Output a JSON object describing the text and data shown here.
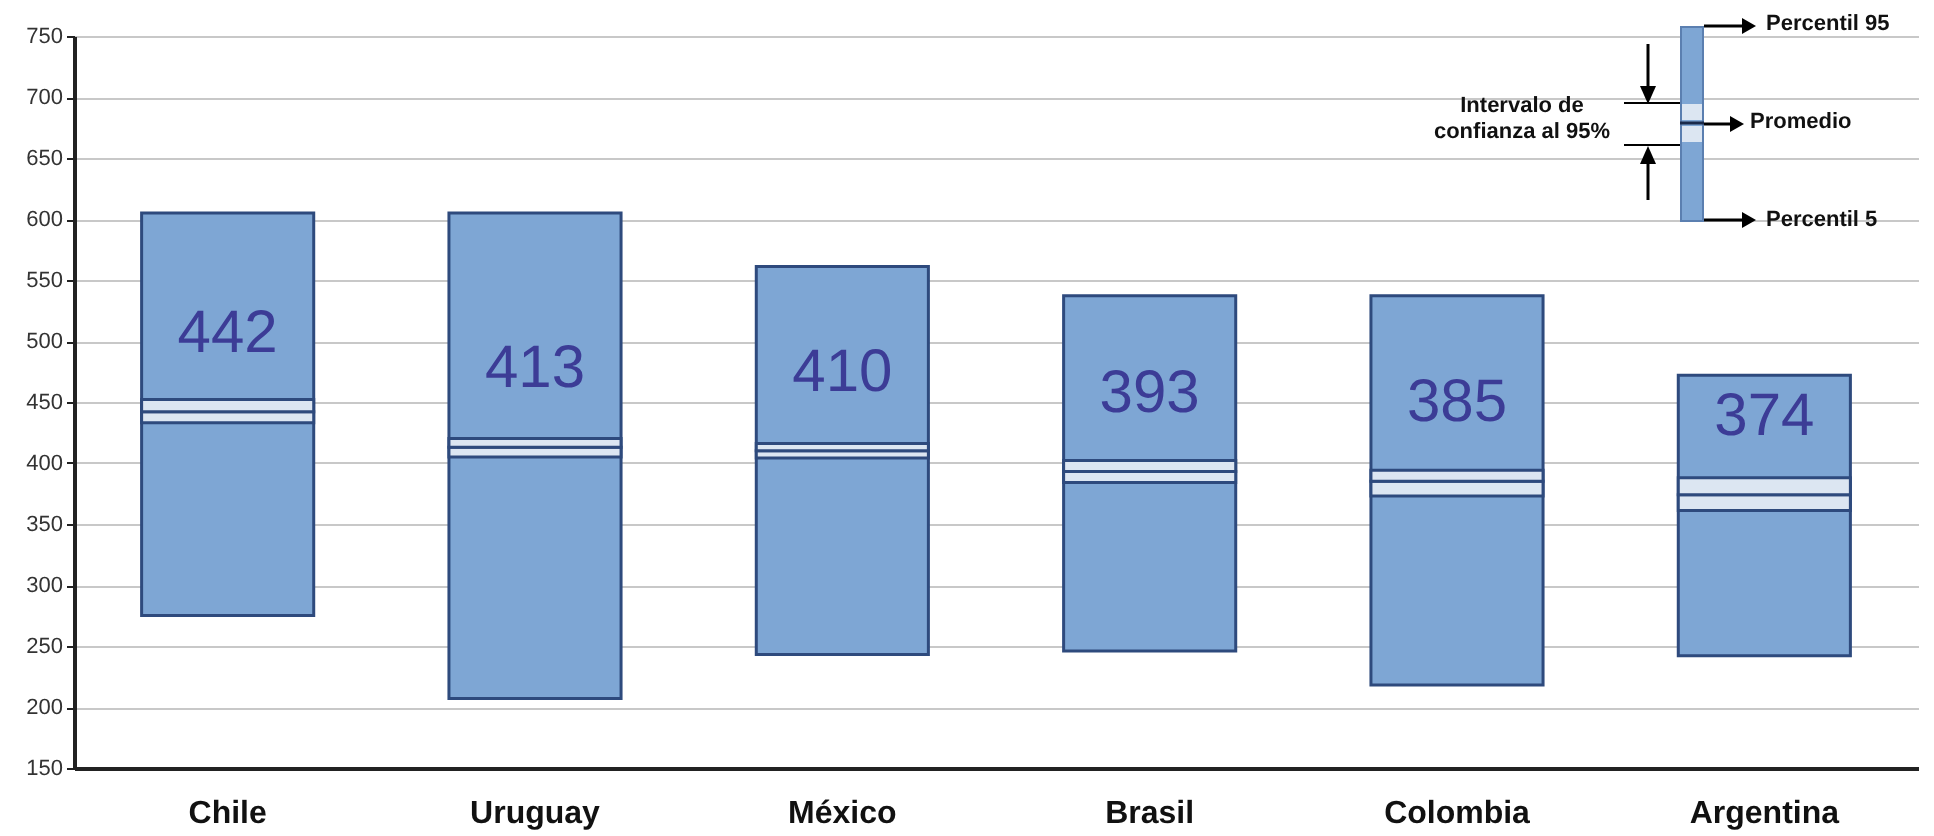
{
  "chart_data": {
    "type": "bar",
    "categories": [
      "Chile",
      "Uruguay",
      "México",
      "Brasil",
      "Colombia",
      "Argentina"
    ],
    "series": [
      {
        "type": "bar",
        "color": "#7ea6d4",
        "base": [
          275,
          207,
          243,
          246,
          218,
          242
        ],
        "values": [
          330,
          398,
          318,
          291,
          319,
          230
        ]
      },
      {
        "type": "bar",
        "color": "#dce6f2",
        "base": [
          433,
          405,
          404,
          384,
          373,
          361
        ],
        "values": [
          9,
          8,
          6,
          9,
          12,
          13
        ]
      },
      {
        "type": "bar",
        "color": "#dce6f2",
        "base": [
          442,
          413,
          410,
          393,
          385,
          374
        ],
        "values": [
          10,
          7,
          6,
          9,
          9,
          14
        ]
      }
    ],
    "ylim": [
      150,
      750
    ],
    "yticks": [
      150,
      200,
      250,
      300,
      350,
      400,
      450,
      500,
      550,
      600,
      650,
      700,
      750
    ],
    "grid": "y",
    "annotations": [
      "Percentil 95",
      "Intervalo de confianza al 95%",
      "Promedio",
      "Percentil 5",
      {
        "text": "442",
        "x": "Chile",
        "y": 442
      },
      {
        "text": "413",
        "x": "Uruguay",
        "y": 413
      },
      {
        "text": "410",
        "x": "México",
        "y": 410
      },
      {
        "text": "393",
        "x": "Brasil",
        "y": 393
      },
      {
        "text": "385",
        "x": "Colombia",
        "y": 385
      },
      {
        "text": "374",
        "x": "Argentina",
        "y": 374
      }
    ]
  }
}
